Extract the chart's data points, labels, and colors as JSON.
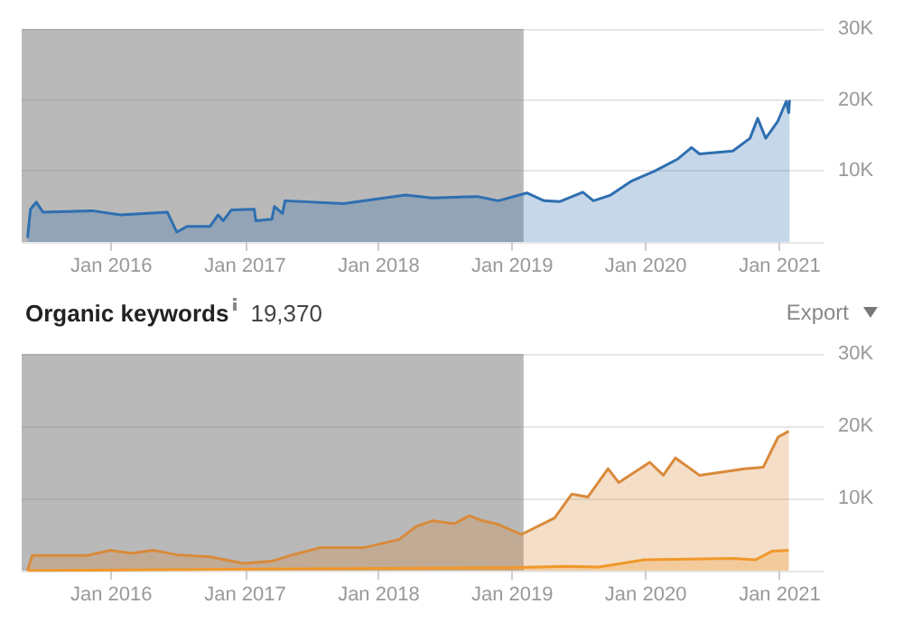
{
  "chart_data": [
    {
      "type": "area",
      "x": [
        "2015-05-17",
        "2015-05-25",
        "2015-06-10",
        "2015-06-28",
        "2015-11-10",
        "2016-01-26",
        "2016-06-02",
        "2016-06-28",
        "2016-07-27",
        "2016-09-27",
        "2016-10-19",
        "2016-11-02",
        "2016-11-24",
        "2017-01-26",
        "2017-01-30",
        "2017-03-15",
        "2017-03-22",
        "2017-04-13",
        "2017-04-20",
        "2017-09-27",
        "2018-03-15",
        "2018-05-27",
        "2018-09-27",
        "2018-11-24",
        "2019-02-10",
        "2019-03-29",
        "2019-05-12",
        "2019-07-13",
        "2019-08-11",
        "2019-09-27",
        "2019-11-24",
        "2020-01-26",
        "2020-03-29",
        "2020-05-05",
        "2020-05-27",
        "2020-08-26",
        "2020-10-12",
        "2020-11-02",
        "2020-11-24",
        "2020-12-27",
        "2021-01-19",
        "2021-01-26",
        "2021-01-28"
      ],
      "series": [
        {
          "color": "#2e6fb0",
          "values": [
            600,
            4600,
            5600,
            4200,
            4400,
            3800,
            4200,
            1400,
            2200,
            2200,
            3800,
            3000,
            4500,
            4600,
            3000,
            3200,
            5000,
            4000,
            5800,
            5400,
            6600,
            6200,
            6400,
            5800,
            6900,
            5800,
            5700,
            7000,
            5800,
            6600,
            8600,
            10000,
            11700,
            13300,
            12400,
            12800,
            14600,
            17400,
            14600,
            17000,
            19800,
            18200,
            20000
          ]
        }
      ],
      "xlim": [
        "2015-05-01",
        "2021-05-01"
      ],
      "xticks": [
        {
          "value": "2016-01",
          "label": "Jan 2016"
        },
        {
          "value": "2017-01",
          "label": "Jan 2017"
        },
        {
          "value": "2018-01",
          "label": "Jan 2018"
        },
        {
          "value": "2019-01",
          "label": "Jan 2019"
        },
        {
          "value": "2020-01",
          "label": "Jan 2020"
        },
        {
          "value": "2021-01",
          "label": "Jan 2021"
        }
      ],
      "ylim": [
        0,
        30000
      ],
      "yticks": [
        {
          "value": 0,
          "label": null
        },
        {
          "value": 10000,
          "label": "10K"
        },
        {
          "value": 20000,
          "label": "20K"
        },
        {
          "value": 30000,
          "label": "30K"
        }
      ],
      "grid": "y",
      "bands": [
        {
          "axis": "x",
          "from": "2015-05-01",
          "to": "2019-02-01",
          "color": "#808080"
        }
      ]
    },
    {
      "type": "area",
      "title": "Organic keywords",
      "subtitle": "19,370",
      "annotations": [
        "Export"
      ],
      "series": [
        {
          "color": "#d98a3a",
          "x": [
            "2015-05-17",
            "2015-05-30",
            "2015-10-27",
            "2015-12-28",
            "2016-02-25",
            "2016-04-27",
            "2016-06-28",
            "2016-09-27",
            "2016-12-28",
            "2017-03-15",
            "2017-05-12",
            "2017-07-27",
            "2017-11-24",
            "2018-02-25",
            "2018-04-13",
            "2018-05-27",
            "2018-07-27",
            "2018-09-06",
            "2018-10-12",
            "2018-11-24",
            "2019-01-26",
            "2019-04-27",
            "2019-06-13",
            "2019-07-27",
            "2019-09-20",
            "2019-10-19",
            "2020-01-12",
            "2020-02-18",
            "2020-03-22",
            "2020-05-27",
            "2020-09-27",
            "2020-11-17",
            "2020-12-28",
            "2021-01-26"
          ],
          "values": [
            0,
            2100,
            2100,
            2800,
            2400,
            2800,
            2200,
            1900,
            1000,
            1300,
            2200,
            3200,
            3200,
            4300,
            6100,
            6900,
            6500,
            7600,
            6900,
            6400,
            5000,
            7300,
            10600,
            10200,
            14100,
            12200,
            15000,
            13200,
            15600,
            13200,
            14100,
            14300,
            18500,
            19300
          ]
        },
        {
          "color": "#f0982a",
          "x": [
            "2015-05-17",
            "2016-11-24",
            "2018-12-28",
            "2019-05-27",
            "2019-08-26",
            "2019-10-27",
            "2019-12-28",
            "2020-08-26",
            "2020-10-27",
            "2020-12-12",
            "2021-01-26"
          ],
          "values": [
            0,
            200,
            400,
            600,
            500,
            1000,
            1500,
            1700,
            1500,
            2700,
            2800
          ]
        }
      ],
      "xlim": [
        "2015-05-01",
        "2021-05-01"
      ],
      "xticks": [
        {
          "value": "2016-01",
          "label": "Jan 2016"
        },
        {
          "value": "2017-01",
          "label": "Jan 2017"
        },
        {
          "value": "2018-01",
          "label": "Jan 2018"
        },
        {
          "value": "2019-01",
          "label": "Jan 2019"
        },
        {
          "value": "2020-01",
          "label": "Jan 2020"
        },
        {
          "value": "2021-01",
          "label": "Jan 2021"
        }
      ],
      "ylim": [
        0,
        30000
      ],
      "yticks": [
        {
          "value": 0,
          "label": null
        },
        {
          "value": 10000,
          "label": "10K"
        },
        {
          "value": 20000,
          "label": "20K"
        },
        {
          "value": 30000,
          "label": "30K"
        }
      ],
      "grid": "y",
      "bands": [
        {
          "axis": "x",
          "from": "2015-05-01",
          "to": "2019-02-01",
          "color": "#808080"
        }
      ]
    }
  ]
}
